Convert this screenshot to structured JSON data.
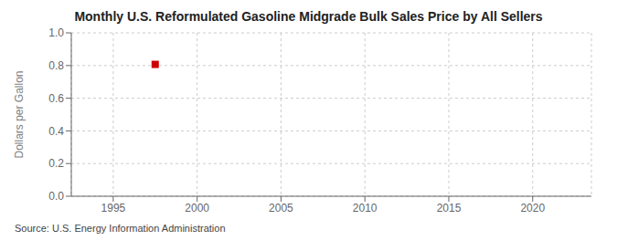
{
  "chart_data": {
    "type": "scatter",
    "title": "Monthly U.S. Reformulated Gasoline Midgrade Bulk Sales Price by All Sellers",
    "y_label": "Dollars per Gallon",
    "annotations": [
      "Source: U.S. Energy Information Administration"
    ],
    "x": [
      1997.5
    ],
    "values": [
      0.807
    ],
    "color": "#cc0000",
    "marker": "square",
    "xlim": [
      1992.5,
      2023.5
    ],
    "ylim": [
      0,
      1
    ],
    "xticks": [
      1995,
      2000,
      2005,
      2010,
      2015,
      2020
    ],
    "yticks": [
      {
        "value": 0,
        "label": "0.0"
      },
      0.2,
      0.4,
      0.6,
      0.8,
      {
        "value": 1,
        "label": "1.0"
      }
    ],
    "grid": true
  }
}
